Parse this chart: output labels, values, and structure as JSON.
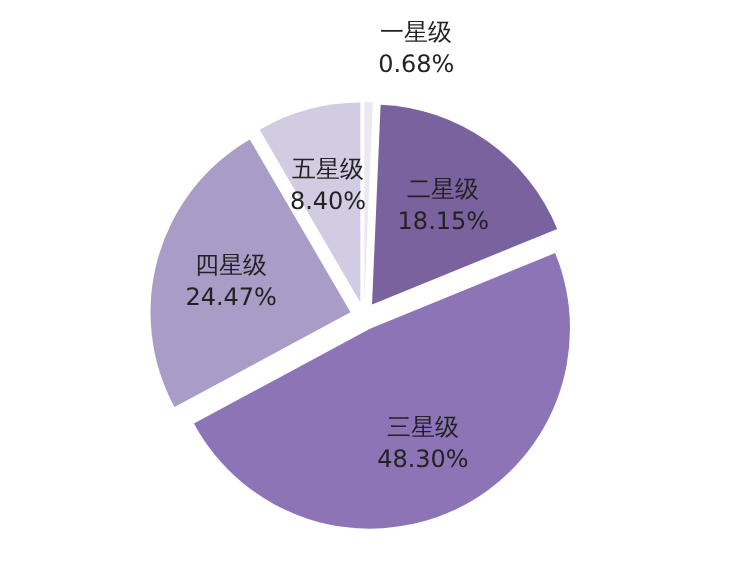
{
  "chart_data": {
    "type": "pie",
    "categories": [
      "一星级",
      "二星级",
      "三星级",
      "四星级",
      "五星级"
    ],
    "values": [
      0.68,
      18.15,
      48.3,
      24.47,
      8.4
    ],
    "value_labels": [
      "0.68%",
      "18.15%",
      "48.30%",
      "24.47%",
      "8.40%"
    ],
    "colors": [
      "#ebe8f2",
      "#7a629f",
      "#8c74b6",
      "#a99cc6",
      "#d2cce2"
    ],
    "legend": false
  }
}
